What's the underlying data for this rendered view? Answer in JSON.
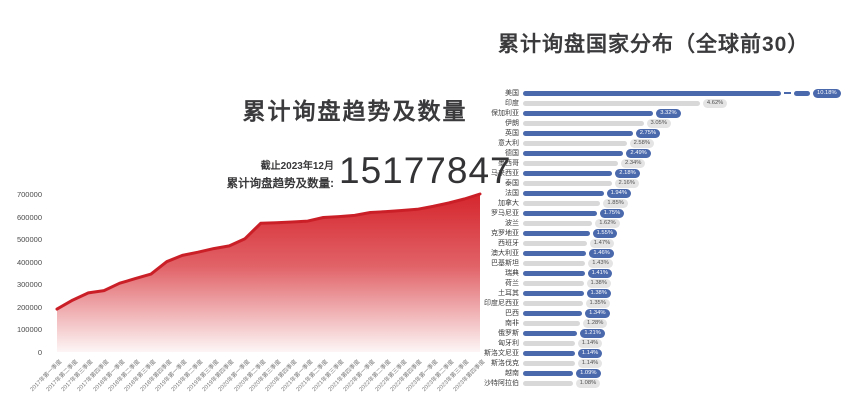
{
  "left_panel": {
    "title": "累计询盘趋势及数量",
    "asof": "截止2023年12月",
    "total_label": "累计询盘趋势及数量:",
    "total_value": "15177847"
  },
  "right_panel": {
    "title": "累计询盘国家分布（全球前30）"
  },
  "colors": {
    "area_red": "#d5262d",
    "area_line_red": "#cb1f28",
    "bar_blue": "#4a69ad",
    "bar_gray": "#d8d8d8",
    "pill_gray_bg": "#e4e4e4",
    "pill_gray_text": "#4f4f4f",
    "pill_blue_text": "#ffffff",
    "title_text": "#3a3a3c"
  },
  "chart_data": [
    {
      "type": "area",
      "title": "累计询盘趋势及数量",
      "annotations": [
        "截止2023年12月",
        "累计询盘趋势及数量: 15177847"
      ],
      "xlabel": "",
      "ylabel": "",
      "ylim": [
        0,
        700000
      ],
      "yticks": [
        0,
        100000,
        200000,
        300000,
        400000,
        500000,
        600000,
        700000
      ],
      "grid": false,
      "legend": false,
      "x": [
        "2017年第一季度",
        "2017年第二季度",
        "2017年第三季度",
        "2017年第四季度",
        "2018年第一季度",
        "2018年第二季度",
        "2018年第三季度",
        "2018年第四季度",
        "2019年第一季度",
        "2019年第二季度",
        "2019年第三季度",
        "2019年第四季度",
        "2020年第一季度",
        "2020年第二季度",
        "2020年第三季度",
        "2020年第四季度",
        "2021年第一季度",
        "2021年第二季度",
        "2021年第三季度",
        "2021年第四季度",
        "2022年第一季度",
        "2022年第二季度",
        "2022年第三季度",
        "2022年第四季度",
        "2023年第一季度",
        "2023年第二季度",
        "2023年第三季度",
        "2023年第四季度"
      ],
      "values": [
        190000,
        230000,
        262000,
        272000,
        305000,
        325000,
        345000,
        400000,
        428000,
        442000,
        458000,
        470000,
        502000,
        570000,
        573000,
        576000,
        580000,
        596000,
        600000,
        605000,
        618000,
        622000,
        627000,
        632000,
        645000,
        660000,
        678000,
        700000
      ]
    },
    {
      "type": "bar",
      "orientation": "horizontal",
      "title": "累计询盘国家分布（全球前30）",
      "legend": false,
      "grid": false,
      "unit": "%",
      "first_bar_broken": true,
      "categories": [
        "美国",
        "印度",
        "保加利亚",
        "伊朗",
        "英国",
        "意大利",
        "德国",
        "墨西哥",
        "马来西亚",
        "泰国",
        "法国",
        "加拿大",
        "罗马尼亚",
        "波兰",
        "克罗地亚",
        "西班牙",
        "澳大利亚",
        "巴基斯坦",
        "瑞典",
        "荷兰",
        "土耳其",
        "印度尼西亚",
        "巴西",
        "南非",
        "俄罗斯",
        "匈牙利",
        "斯洛文尼亚",
        "斯洛伐克",
        "越南",
        "沙特阿拉伯"
      ],
      "values": [
        10.18,
        4.62,
        3.32,
        3.05,
        2.75,
        2.58,
        2.49,
        2.34,
        2.18,
        2.16,
        1.94,
        1.85,
        1.75,
        1.62,
        1.55,
        1.47,
        1.46,
        1.43,
        1.41,
        1.38,
        1.38,
        1.35,
        1.34,
        1.28,
        1.21,
        1.14,
        1.14,
        1.14,
        1.09,
        1.08
      ],
      "value_labels": [
        "10.18%",
        "4.62%",
        "3.32%",
        "3.05%",
        "2.75%",
        "2.58%",
        "2.49%",
        "2.34%",
        "2.18%",
        "2.16%",
        "1.94%",
        "1.85%",
        "1.75%",
        "1.62%",
        "1.55%",
        "1.47%",
        "1.46%",
        "1.43%",
        "1.41%",
        "1.38%",
        "1.38%",
        "1.35%",
        "1.34%",
        "1.28%",
        "1.21%",
        "1.14%",
        "1.14%",
        "1.14%",
        "1.09%",
        "1.08%"
      ]
    }
  ]
}
